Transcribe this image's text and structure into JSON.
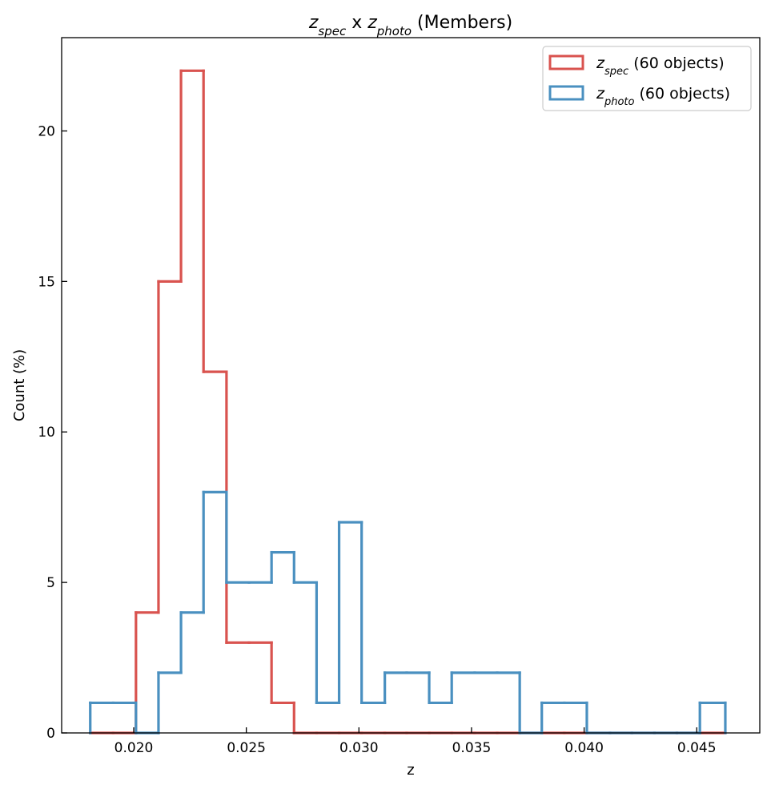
{
  "chart_data": {
    "type": "step-histogram",
    "title": {
      "parts": [
        {
          "text": "z",
          "italic": true
        },
        {
          "text": "spec",
          "italic": true,
          "sub": true
        },
        {
          "text": " x "
        },
        {
          "text": "z",
          "italic": true
        },
        {
          "text": "photo",
          "italic": true,
          "sub": true
        },
        {
          "text": " (Members)"
        }
      ]
    },
    "xlabel": "z",
    "ylabel": "Count (%)",
    "xlim": [
      0.0168,
      0.0478
    ],
    "ylim": [
      0,
      23.1
    ],
    "xticks": [
      0.02,
      0.025,
      0.03,
      0.035,
      0.04,
      0.045
    ],
    "xtick_labels": [
      "0.020",
      "0.025",
      "0.030",
      "0.035",
      "0.040",
      "0.045"
    ],
    "yticks": [
      0,
      5,
      10,
      15,
      20
    ],
    "ytick_labels": [
      "0",
      "5",
      "10",
      "15",
      "20"
    ],
    "bin_edges": [
      0.01807,
      0.01909,
      0.0201,
      0.0211,
      0.0221,
      0.0231,
      0.02412,
      0.02512,
      0.02612,
      0.02712,
      0.02812,
      0.02912,
      0.03012,
      0.03115,
      0.03212,
      0.03312,
      0.03412,
      0.03514,
      0.03614,
      0.03714,
      0.03812,
      0.03912,
      0.04012,
      0.04115,
      0.04212,
      0.04312,
      0.04412,
      0.04514,
      0.04627
    ],
    "legend_position": "top-right",
    "series": [
      {
        "name": "z",
        "name_sub": "spec",
        "name_suffix": " (60 objects)",
        "color": "#d9534f",
        "values": [
          0,
          0,
          4,
          15,
          22,
          12,
          3,
          3,
          1,
          0,
          0,
          0,
          0,
          0,
          0,
          0,
          0,
          0,
          0,
          0,
          0,
          0,
          0,
          0,
          0,
          0,
          0,
          0
        ]
      },
      {
        "name": "z",
        "name_sub": "photo",
        "name_suffix": " (60 objects)",
        "color": "#4a90c0",
        "values": [
          1,
          1,
          0,
          2,
          4,
          8,
          5,
          5,
          6,
          5,
          1,
          7,
          1,
          2,
          2,
          1,
          2,
          2,
          2,
          0,
          1,
          1,
          0,
          0,
          0,
          0,
          0,
          1
        ]
      }
    ],
    "overlap_color": "#4e6a99"
  }
}
